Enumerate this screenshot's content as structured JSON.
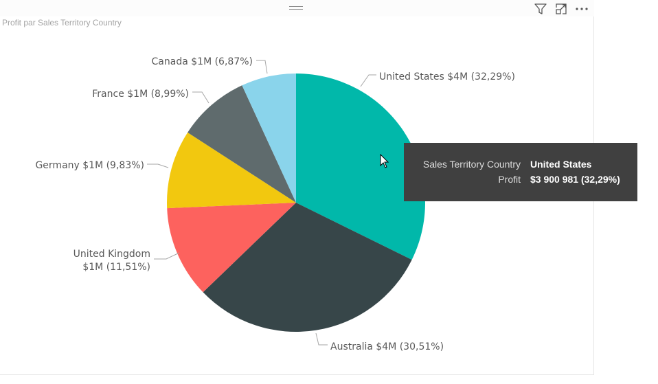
{
  "visual": {
    "title": "Profit par Sales Territory Country",
    "toolbar": {
      "filter_icon": "filter-icon",
      "focus_icon": "focus-mode-icon",
      "more_icon": "more-options-icon"
    }
  },
  "chart_data": {
    "type": "pie",
    "title": "Profit par Sales Territory Country",
    "legend": "none",
    "slices": [
      {
        "name": "United States",
        "percent": 32.29,
        "label": "United States $4M (32,29%)",
        "color": "#01B8AA"
      },
      {
        "name": "Australia",
        "percent": 30.51,
        "label": "Australia $4M (30,51%)",
        "color": "#374649"
      },
      {
        "name": "United Kingdom",
        "percent": 11.51,
        "label_line1": "United Kingdom",
        "label_line2": "$1M (11,51%)",
        "color": "#FD625E"
      },
      {
        "name": "Germany",
        "percent": 9.83,
        "label": "Germany $1M (9,83%)",
        "color": "#F2C80F"
      },
      {
        "name": "France",
        "percent": 8.99,
        "label": "France $1M (8,99%)",
        "color": "#5F6B6D"
      },
      {
        "name": "Canada",
        "percent": 6.87,
        "label": "Canada $1M (6,87%)",
        "color": "#8AD4EB"
      }
    ]
  },
  "tooltip": {
    "rows": [
      {
        "key": "Sales Territory Country",
        "value": "United States"
      },
      {
        "key": "Profit",
        "value": "$3 900 981 (32,29%)"
      }
    ]
  }
}
